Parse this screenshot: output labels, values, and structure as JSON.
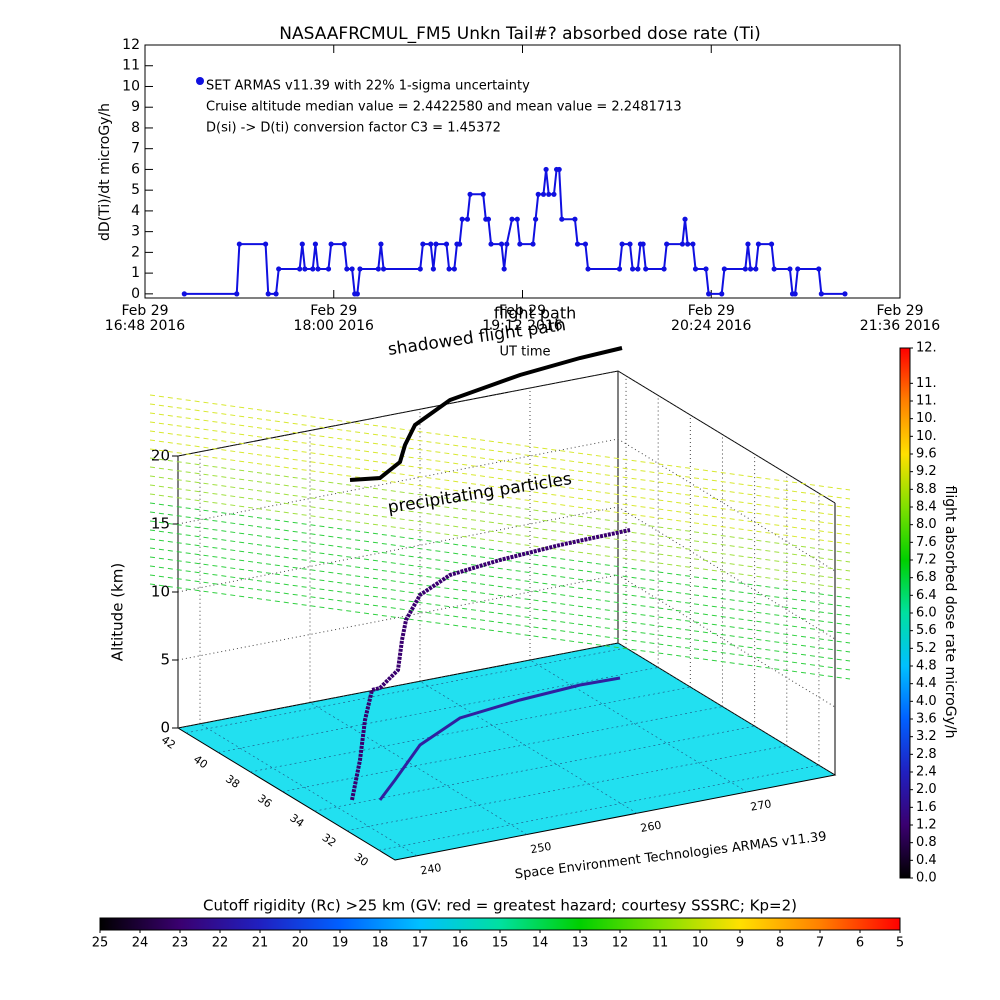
{
  "chart_data": [
    {
      "type": "line",
      "title": "NASAAFRCMUL_FM5 Unkn Tail#? absorbed dose rate (Ti)",
      "y_label": "dD(Ti)/dt microGy/h",
      "x_label": "UT time",
      "annotations": [
        "Cruise altitude median value = 2.4422580 and mean value = 2.2481713",
        "D(si) -> D(ti) conversion factor C3 = 1.45372"
      ],
      "xlim": [
        "2016-02-29T16:48",
        "2016-02-29T21:36"
      ],
      "xticks": [
        {
          "value": "2016-02-29T16:48",
          "label": "Feb 29\n16:48 2016"
        },
        {
          "value": "2016-02-29T18:00",
          "label": "Feb 29\n18:00 2016"
        },
        {
          "value": "2016-02-29T19:12",
          "label": "Feb 29\n19:12 2016"
        },
        {
          "value": "2016-02-29T20:24",
          "label": "Feb 29\n20:24 2016"
        },
        {
          "value": "2016-02-29T21:36",
          "label": "Feb 29\n21:36 2016"
        }
      ],
      "ylim": [
        -0.2,
        12
      ],
      "yticks": [
        0,
        1,
        2,
        3,
        4,
        5,
        6,
        7,
        8,
        9,
        10,
        11,
        12
      ],
      "x": [
        "2016-02-29T17:03",
        "2016-02-29T17:23",
        "2016-02-29T17:24",
        "2016-02-29T17:34",
        "2016-02-29T17:35",
        "2016-02-29T17:38",
        "2016-02-29T17:39",
        "2016-02-29T17:47",
        "2016-02-29T17:48",
        "2016-02-29T17:49",
        "2016-02-29T17:52",
        "2016-02-29T17:53",
        "2016-02-29T17:54",
        "2016-02-29T17:58",
        "2016-02-29T17:59",
        "2016-02-29T18:04",
        "2016-02-29T18:05",
        "2016-02-29T18:07",
        "2016-02-29T18:08",
        "2016-02-29T18:09",
        "2016-02-29T18:10",
        "2016-02-29T18:17",
        "2016-02-29T18:18",
        "2016-02-29T18:19",
        "2016-02-29T18:33",
        "2016-02-29T18:34",
        "2016-02-29T18:37",
        "2016-02-29T18:38",
        "2016-02-29T18:39",
        "2016-02-29T18:43",
        "2016-02-29T18:44",
        "2016-02-29T18:46",
        "2016-02-29T18:47",
        "2016-02-29T18:48",
        "2016-02-29T18:49",
        "2016-02-29T18:51",
        "2016-02-29T18:52",
        "2016-02-29T18:57",
        "2016-02-29T18:58",
        "2016-02-29T18:59",
        "2016-02-29T19:00",
        "2016-02-29T19:04",
        "2016-02-29T19:05",
        "2016-02-29T19:06",
        "2016-02-29T19:08",
        "2016-02-29T19:10",
        "2016-02-29T19:11",
        "2016-02-29T19:16",
        "2016-02-29T19:17",
        "2016-02-29T19:18",
        "2016-02-29T19:20",
        "2016-02-29T19:21",
        "2016-02-29T19:22",
        "2016-02-29T19:24",
        "2016-02-29T19:25",
        "2016-02-29T19:26",
        "2016-02-29T19:27",
        "2016-02-29T19:32",
        "2016-02-29T19:33",
        "2016-02-29T19:36",
        "2016-02-29T19:37",
        "2016-02-29T19:49",
        "2016-02-29T19:50",
        "2016-02-29T19:53",
        "2016-02-29T19:54",
        "2016-02-29T19:56",
        "2016-02-29T19:57",
        "2016-02-29T19:58",
        "2016-02-29T19:59",
        "2016-02-29T20:06",
        "2016-02-29T20:07",
        "2016-02-29T20:13",
        "2016-02-29T20:14",
        "2016-02-29T20:15",
        "2016-02-29T20:17",
        "2016-02-29T20:18",
        "2016-02-29T20:22",
        "2016-02-29T20:23",
        "2016-02-29T20:28",
        "2016-02-29T20:29",
        "2016-02-29T20:37",
        "2016-02-29T20:38",
        "2016-02-29T20:39",
        "2016-02-29T20:41",
        "2016-02-29T20:42",
        "2016-02-29T20:47",
        "2016-02-29T20:48",
        "2016-02-29T20:54",
        "2016-02-29T20:55",
        "2016-02-29T20:56",
        "2016-02-29T20:57",
        "2016-02-29T21:05",
        "2016-02-29T21:06",
        "2016-02-29T21:15"
      ],
      "series": [
        {
          "name": "SET ARMAS v11.39 with 22% 1-sigma uncertainty",
          "color": "#1010e0",
          "values": [
            0,
            0,
            2.4,
            2.4,
            0,
            0,
            1.2,
            1.2,
            2.4,
            1.2,
            1.2,
            2.4,
            1.2,
            1.2,
            2.4,
            2.4,
            1.2,
            1.2,
            0,
            0,
            1.2,
            1.2,
            2.4,
            1.2,
            1.2,
            2.4,
            2.4,
            1.2,
            2.4,
            2.4,
            1.2,
            1.2,
            2.4,
            2.4,
            3.6,
            3.6,
            4.8,
            4.8,
            3.6,
            3.6,
            2.4,
            2.4,
            1.2,
            2.4,
            3.6,
            3.6,
            2.4,
            2.4,
            3.6,
            4.8,
            4.8,
            6.0,
            4.8,
            4.8,
            6.0,
            6.0,
            3.6,
            3.6,
            2.4,
            2.4,
            1.2,
            1.2,
            2.4,
            2.4,
            1.2,
            1.2,
            2.4,
            2.4,
            1.2,
            1.2,
            2.4,
            2.4,
            3.6,
            2.4,
            2.4,
            1.2,
            1.2,
            0,
            0,
            1.2,
            1.2,
            2.4,
            1.2,
            1.2,
            2.4,
            2.4,
            1.2,
            1.2,
            0,
            0,
            1.2,
            1.2,
            0,
            0
          ]
        }
      ]
    },
    {
      "type": "surface3d",
      "z_label": "Altitude (km)",
      "annotations": [
        "flight path",
        "shadowed flight path",
        "precipitating particles",
        "Space Environment Technologies ARMAS v11.39"
      ],
      "zlim": [
        0,
        20
      ],
      "zticks": [
        0,
        5,
        10,
        15,
        20
      ],
      "xlim": [
        238,
        278
      ],
      "xticks": [
        240,
        250,
        260,
        270
      ],
      "ylim": [
        29,
        42.5
      ],
      "yticks": [
        30,
        32,
        34,
        36,
        38,
        40,
        42
      ]
    },
    {
      "type": "colorbar",
      "orientation": "vertical",
      "label": "flight absorbed dose rate microGy/h",
      "ylim": [
        0,
        12
      ],
      "yticks": [
        {
          "value": 0,
          "label": "0.0"
        },
        {
          "value": 0.4,
          "label": "0.4"
        },
        {
          "value": 0.8,
          "label": "0.8"
        },
        {
          "value": 1.2,
          "label": "1.2"
        },
        {
          "value": 1.6,
          "label": "1.6"
        },
        {
          "value": 2,
          "label": "2.0"
        },
        2.4,
        2.8,
        3.2,
        3.6,
        {
          "value": 4,
          "label": "4.0"
        },
        4.4,
        4.8,
        5.2,
        5.6,
        {
          "value": 6,
          "label": "6.0"
        },
        6.4,
        6.8,
        7.2,
        7.6,
        {
          "value": 8,
          "label": "8.0"
        },
        8.4,
        8.8,
        9.2,
        9.6,
        {
          "value": 10,
          "label": "10."
        },
        {
          "value": 10.4,
          "label": "10."
        },
        {
          "value": 10.8,
          "label": "11."
        },
        {
          "value": 11.2,
          "label": "11."
        },
        {
          "value": 12,
          "label": "12."
        }
      ]
    },
    {
      "type": "colorbar",
      "orientation": "horizontal",
      "label": "Cutoff rigidity (Rc) >25 km (GV: red = greatest hazard; courtesy SSSRC; Kp=2)",
      "xlim": [
        25,
        5
      ],
      "xticks": [
        25,
        24,
        23,
        22,
        21,
        20,
        19,
        18,
        17,
        16,
        15,
        14,
        13,
        12,
        11,
        10,
        9,
        8,
        7,
        6,
        5
      ]
    }
  ]
}
